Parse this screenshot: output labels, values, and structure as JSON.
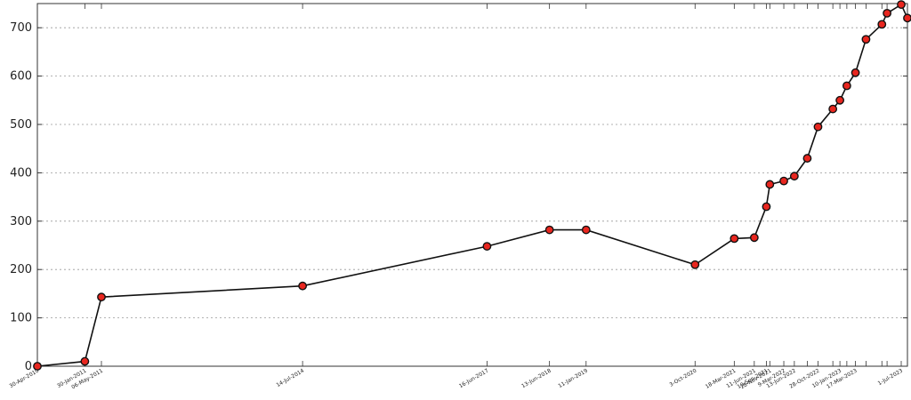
{
  "chart_data": {
    "type": "line",
    "title": "",
    "xlabel": "",
    "ylabel": "",
    "ylim": [
      0,
      750
    ],
    "yticks": [
      0,
      100,
      200,
      300,
      400,
      500,
      600,
      700
    ],
    "grid": "horizontal-dotted",
    "line_color": "#111111",
    "marker_color": "#e8261f",
    "x_tick_labels": [
      "30-Apr-2010",
      "30-Jan-2011",
      "06-May-2011",
      "14-Jul-2014",
      "16-Jun-2017",
      "13-Jun-2018",
      "11-Jan-2019",
      "3-Oct-2020",
      "18-Mar-2021",
      "11-Jun-2021",
      "10-Sep-2021",
      "28-Nov-2021",
      "9-Mar-2022",
      "13-Jun-2022",
      "28-Oct-2022",
      "10-Jan-2023",
      "17-Mar-2023",
      "1-Jul-2023"
    ],
    "series": [
      {
        "name": "",
        "x": [
          "2010-04-30",
          "2011-01-30",
          "2011-05-06",
          "2014-07-14",
          "2017-06-16",
          "2018-06-13",
          "2019-01-11",
          "2020-10-03",
          "2021-05-18",
          "2021-09-11",
          "2021-11-20",
          "2021-12-10",
          "2022-03-01",
          "2022-05-01",
          "2022-07-15",
          "2022-09-15",
          "2022-12-10",
          "2023-01-20",
          "2023-03-01",
          "2023-04-20",
          "2023-06-20",
          "2023-09-20",
          "2023-10-20",
          "2024-01-10",
          "2024-02-15"
        ],
        "values": [
          0,
          10,
          143,
          166,
          248,
          282,
          282,
          210,
          264,
          266,
          330,
          376,
          383,
          393,
          430,
          495,
          532,
          550,
          580,
          607,
          676,
          707,
          730,
          748,
          720
        ]
      }
    ]
  }
}
